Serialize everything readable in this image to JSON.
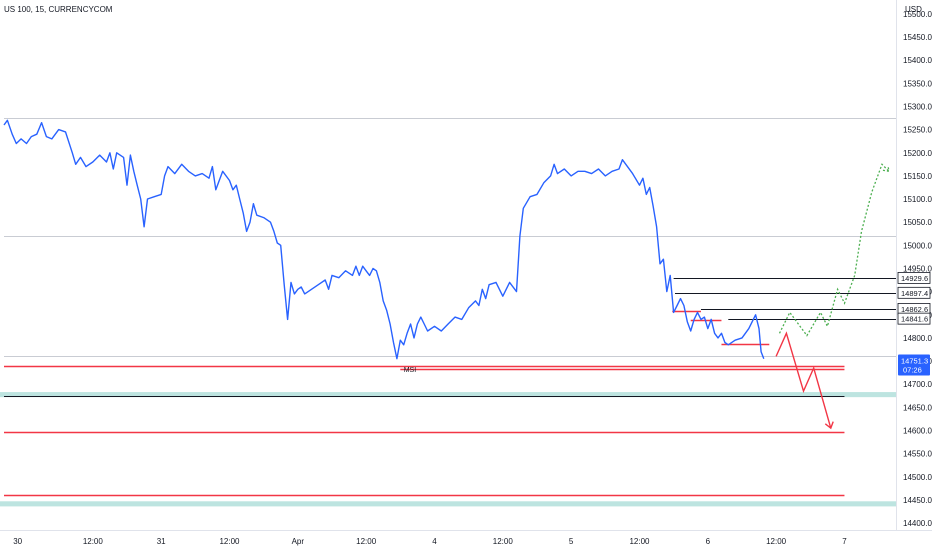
{
  "header": {
    "symbol_title": "US 100, 15, CURRENCYCOM",
    "currency": "USD"
  },
  "chart_data": {
    "type": "line",
    "title": "US 100, 15, CURRENCYCOM",
    "y_unit": "USD",
    "ylim": [
      14385,
      15530
    ],
    "y_ticks": [
      15500,
      15450,
      15400,
      15350,
      15300,
      15250,
      15200,
      15150,
      15100,
      15050,
      15000,
      14950,
      14900,
      14850,
      14800,
      14750,
      14700,
      14650,
      14600,
      14550,
      14500,
      14450,
      14400
    ],
    "y_tick_labels": [
      "15500.0",
      "15450.0",
      "15400.0",
      "15350.0",
      "15300.0",
      "15250.0",
      "15200.0",
      "15150.0",
      "15100.0",
      "15050.0",
      "15000.0",
      "14950.0",
      "14900.0",
      "14850.0",
      "14800.0",
      "14750.0",
      "14700.0",
      "14650.0",
      "14600.0",
      "14550.0",
      "14500.0",
      "14450.0",
      "14400.0"
    ],
    "x_ticks": [
      {
        "label": "30",
        "t": 0.2
      },
      {
        "label": "12:00",
        "t": 1.3
      },
      {
        "label": "31",
        "t": 2.3
      },
      {
        "label": "12:00",
        "t": 3.3
      },
      {
        "label": "Apr",
        "t": 4.3
      },
      {
        "label": "12:00",
        "t": 5.3
      },
      {
        "label": "4",
        "t": 6.3
      },
      {
        "label": "12:00",
        "t": 7.3
      },
      {
        "label": "5",
        "t": 8.3
      },
      {
        "label": "12:00",
        "t": 9.3
      },
      {
        "label": "6",
        "t": 10.3
      },
      {
        "label": "12:00",
        "t": 11.3
      },
      {
        "label": "7",
        "t": 12.3
      }
    ],
    "series": [
      {
        "color": "#2962ff",
        "points": [
          [
            0.0,
            15260
          ],
          [
            0.05,
            15270
          ],
          [
            0.12,
            15240
          ],
          [
            0.18,
            15220
          ],
          [
            0.25,
            15230
          ],
          [
            0.33,
            15220
          ],
          [
            0.4,
            15235
          ],
          [
            0.48,
            15240
          ],
          [
            0.55,
            15265
          ],
          [
            0.62,
            15235
          ],
          [
            0.7,
            15230
          ],
          [
            0.8,
            15250
          ],
          [
            0.9,
            15245
          ],
          [
            1.0,
            15200
          ],
          [
            1.05,
            15175
          ],
          [
            1.12,
            15190
          ],
          [
            1.2,
            15170
          ],
          [
            1.3,
            15180
          ],
          [
            1.4,
            15195
          ],
          [
            1.5,
            15180
          ],
          [
            1.55,
            15200
          ],
          [
            1.6,
            15165
          ],
          [
            1.65,
            15200
          ],
          [
            1.75,
            15190
          ],
          [
            1.8,
            15130
          ],
          [
            1.85,
            15195
          ],
          [
            1.9,
            15160
          ],
          [
            1.95,
            15130
          ],
          [
            2.0,
            15100
          ],
          [
            2.05,
            15040
          ],
          [
            2.1,
            15100
          ],
          [
            2.2,
            15105
          ],
          [
            2.3,
            15110
          ],
          [
            2.35,
            15150
          ],
          [
            2.4,
            15170
          ],
          [
            2.5,
            15155
          ],
          [
            2.6,
            15175
          ],
          [
            2.7,
            15160
          ],
          [
            2.8,
            15150
          ],
          [
            2.9,
            15155
          ],
          [
            3.0,
            15145
          ],
          [
            3.05,
            15170
          ],
          [
            3.1,
            15120
          ],
          [
            3.2,
            15160
          ],
          [
            3.3,
            15140
          ],
          [
            3.35,
            15120
          ],
          [
            3.4,
            15130
          ],
          [
            3.45,
            15100
          ],
          [
            3.5,
            15070
          ],
          [
            3.55,
            15030
          ],
          [
            3.6,
            15050
          ],
          [
            3.65,
            15090
          ],
          [
            3.7,
            15065
          ],
          [
            3.8,
            15060
          ],
          [
            3.9,
            15050
          ],
          [
            3.95,
            15030
          ],
          [
            4.0,
            15005
          ],
          [
            4.05,
            15000
          ],
          [
            4.1,
            14915
          ],
          [
            4.15,
            14840
          ],
          [
            4.2,
            14920
          ],
          [
            4.25,
            14895
          ],
          [
            4.3,
            14905
          ],
          [
            4.35,
            14910
          ],
          [
            4.4,
            14895
          ],
          [
            4.5,
            14905
          ],
          [
            4.6,
            14915
          ],
          [
            4.7,
            14925
          ],
          [
            4.75,
            14905
          ],
          [
            4.8,
            14935
          ],
          [
            4.9,
            14930
          ],
          [
            5.0,
            14945
          ],
          [
            5.1,
            14935
          ],
          [
            5.15,
            14955
          ],
          [
            5.2,
            14935
          ],
          [
            5.25,
            14955
          ],
          [
            5.3,
            14945
          ],
          [
            5.35,
            14935
          ],
          [
            5.4,
            14950
          ],
          [
            5.45,
            14945
          ],
          [
            5.5,
            14920
          ],
          [
            5.55,
            14880
          ],
          [
            5.6,
            14860
          ],
          [
            5.65,
            14830
          ],
          [
            5.7,
            14790
          ],
          [
            5.75,
            14755
          ],
          [
            5.8,
            14795
          ],
          [
            5.85,
            14785
          ],
          [
            5.9,
            14810
          ],
          [
            5.95,
            14830
          ],
          [
            6.0,
            14800
          ],
          [
            6.05,
            14830
          ],
          [
            6.1,
            14845
          ],
          [
            6.15,
            14830
          ],
          [
            6.2,
            14815
          ],
          [
            6.3,
            14825
          ],
          [
            6.4,
            14815
          ],
          [
            6.5,
            14830
          ],
          [
            6.6,
            14845
          ],
          [
            6.7,
            14840
          ],
          [
            6.8,
            14865
          ],
          [
            6.9,
            14880
          ],
          [
            6.95,
            14870
          ],
          [
            7.0,
            14905
          ],
          [
            7.05,
            14885
          ],
          [
            7.1,
            14915
          ],
          [
            7.2,
            14920
          ],
          [
            7.3,
            14890
          ],
          [
            7.4,
            14920
          ],
          [
            7.5,
            14900
          ],
          [
            7.55,
            15020
          ],
          [
            7.6,
            15080
          ],
          [
            7.7,
            15105
          ],
          [
            7.8,
            15110
          ],
          [
            7.9,
            15135
          ],
          [
            8.0,
            15150
          ],
          [
            8.05,
            15175
          ],
          [
            8.1,
            15155
          ],
          [
            8.2,
            15165
          ],
          [
            8.3,
            15150
          ],
          [
            8.4,
            15160
          ],
          [
            8.5,
            15160
          ],
          [
            8.6,
            15155
          ],
          [
            8.7,
            15165
          ],
          [
            8.8,
            15150
          ],
          [
            8.9,
            15160
          ],
          [
            9.0,
            15165
          ],
          [
            9.05,
            15185
          ],
          [
            9.1,
            15175
          ],
          [
            9.2,
            15155
          ],
          [
            9.3,
            15130
          ],
          [
            9.35,
            15145
          ],
          [
            9.4,
            15110
          ],
          [
            9.45,
            15125
          ],
          [
            9.5,
            15085
          ],
          [
            9.55,
            15040
          ],
          [
            9.6,
            14960
          ],
          [
            9.65,
            14970
          ],
          [
            9.7,
            14900
          ],
          [
            9.75,
            14935
          ],
          [
            9.8,
            14855
          ],
          [
            9.85,
            14870
          ],
          [
            9.9,
            14885
          ],
          [
            9.95,
            14870
          ],
          [
            10.0,
            14835
          ],
          [
            10.05,
            14815
          ],
          [
            10.1,
            14840
          ],
          [
            10.15,
            14855
          ],
          [
            10.2,
            14840
          ],
          [
            10.25,
            14845
          ],
          [
            10.3,
            14820
          ],
          [
            10.35,
            14840
          ],
          [
            10.4,
            14810
          ],
          [
            10.45,
            14800
          ],
          [
            10.5,
            14810
          ],
          [
            10.55,
            14790
          ],
          [
            10.6,
            14785
          ],
          [
            10.7,
            14795
          ],
          [
            10.8,
            14800
          ],
          [
            10.9,
            14820
          ],
          [
            11.0,
            14850
          ],
          [
            11.05,
            14820
          ],
          [
            11.08,
            14770
          ],
          [
            11.12,
            14755
          ]
        ]
      }
    ],
    "forecast_bearish": {
      "color": "#f23645",
      "points": [
        [
          11.3,
          14760
        ],
        [
          11.45,
          14810
        ],
        [
          11.7,
          14685
        ],
        [
          11.85,
          14735
        ],
        [
          12.1,
          14605
        ]
      ]
    },
    "forecast_bullish": {
      "color": "#4caf50",
      "points": [
        [
          11.35,
          14810
        ],
        [
          11.5,
          14855
        ],
        [
          11.75,
          14805
        ],
        [
          11.95,
          14855
        ],
        [
          12.05,
          14825
        ],
        [
          12.2,
          14905
        ],
        [
          12.3,
          14875
        ],
        [
          12.45,
          14935
        ],
        [
          12.55,
          15030
        ],
        [
          12.7,
          15115
        ],
        [
          12.85,
          15175
        ],
        [
          12.95,
          15160
        ]
      ]
    },
    "hlines": [
      {
        "y": 15276,
        "t_start": 0,
        "t_end": 13.8,
        "color": "#c9ccd3"
      },
      {
        "y": 15021,
        "t_start": 0,
        "t_end": 13.8,
        "color": "#c9ccd3"
      },
      {
        "y": 14760,
        "t_start": 0,
        "t_end": 13.8,
        "color": "#c9ccd3"
      },
      {
        "y": 14929.6,
        "t_start": 9.8,
        "t_end": 13.8,
        "color": "#131722"
      },
      {
        "y": 14897.4,
        "t_start": 9.82,
        "t_end": 13.8,
        "color": "#131722"
      },
      {
        "y": 14862.6,
        "t_start": 10.2,
        "t_end": 13.8,
        "color": "#131722"
      },
      {
        "y": 14841.6,
        "t_start": 10.6,
        "t_end": 13.8,
        "color": "#131722"
      },
      {
        "y": 14740,
        "t_start": 0,
        "t_end": 12.3,
        "color": "#f23645",
        "width": 1.5
      },
      {
        "y": 14733,
        "t_start": 5.8,
        "t_end": 12.3,
        "color": "#f23645",
        "width": 1.5
      },
      {
        "y": 14597,
        "t_start": 0,
        "t_end": 12.3,
        "color": "#f23645",
        "width": 1.5
      },
      {
        "y": 14460,
        "t_start": 0,
        "t_end": 12.3,
        "color": "#f23645",
        "width": 1.5
      },
      {
        "y": 14675,
        "t_start": 0,
        "t_end": 12.3,
        "color": "#131722"
      },
      {
        "y": 14858,
        "t_start": 9.78,
        "t_end": 10.2,
        "color": "#f23645",
        "width": 1.5
      },
      {
        "y": 14839,
        "t_start": 10.05,
        "t_end": 10.5,
        "color": "#f23645",
        "width": 1.5
      },
      {
        "y": 14786,
        "t_start": 10.5,
        "t_end": 11.2,
        "color": "#f23645",
        "width": 1.5
      }
    ],
    "zones": [
      {
        "y_top": 14683,
        "y_bottom": 14672,
        "color": "#b2dfdb"
      },
      {
        "y_top": 14447,
        "y_bottom": 14436,
        "color": "#b2dfdb"
      }
    ],
    "annotations": [
      {
        "text": "MSI",
        "t": 5.85,
        "y": 14726
      }
    ],
    "price_labels": [
      {
        "text": "14929.6",
        "y": 14929.6,
        "style": "boxed"
      },
      {
        "text": "14897.4",
        "y": 14897.4,
        "style": "boxed"
      },
      {
        "text": "14862.6",
        "y": 14862.6,
        "style": "boxed"
      },
      {
        "text": "14841.6",
        "y": 14841.6,
        "style": "boxed"
      }
    ],
    "current_price": {
      "text": "14751.3",
      "countdown": "07:26",
      "y": 14751.3,
      "color": "#2962ff"
    },
    "grid": false,
    "legend": "none"
  }
}
